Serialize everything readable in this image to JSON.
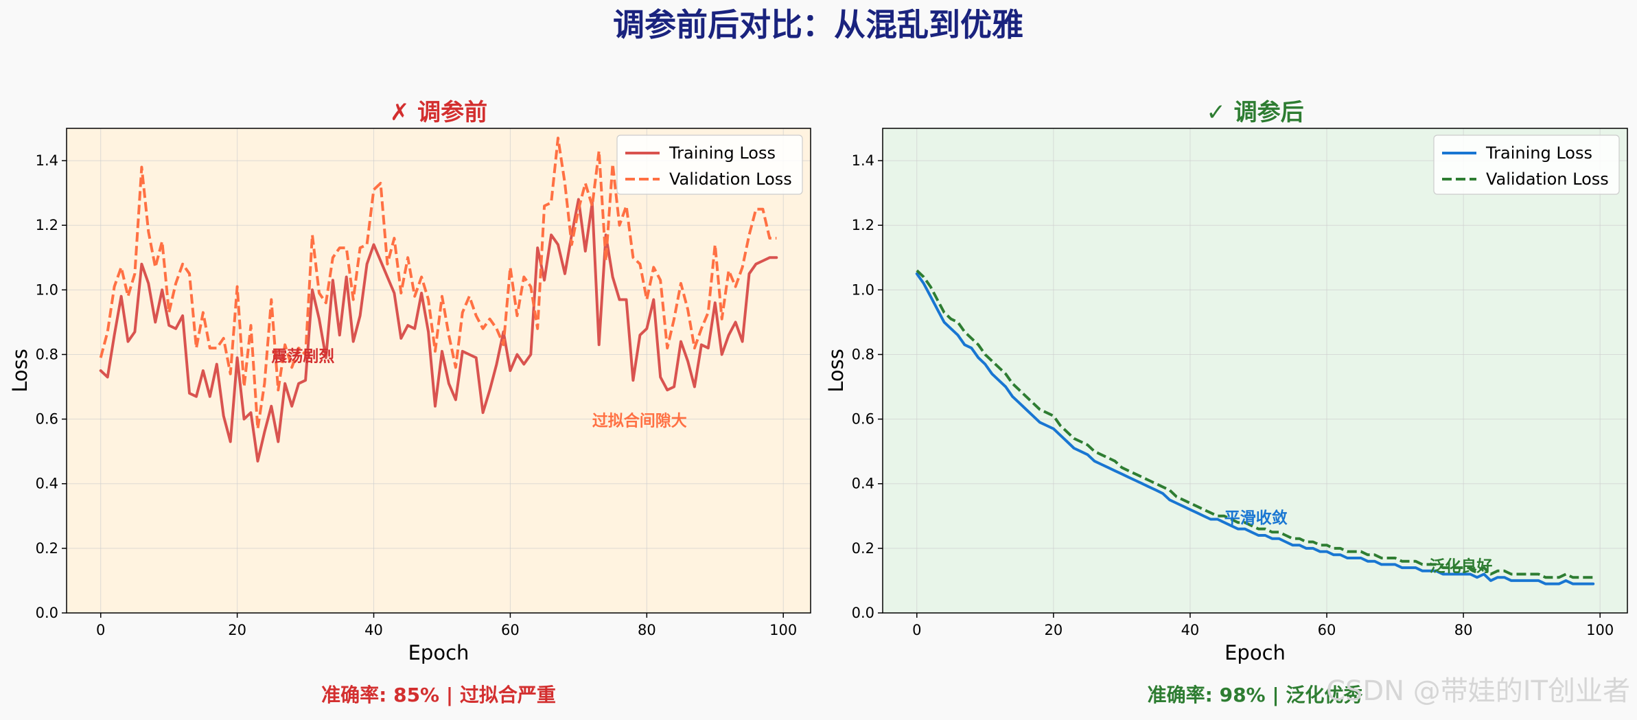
{
  "title": "调参前后对比：从混乱到优雅",
  "watermark": "CSDN @带娃的IT创业者",
  "colors": {
    "title": "#1a237e",
    "left_title": "#d32f2f",
    "right_title": "#2e7d32",
    "left_bg": "#fff3e0",
    "right_bg": "#e8f5e9",
    "left_train": "#d9534f",
    "left_val": "#ff7043",
    "right_train": "#1976d2",
    "right_val": "#2e7d32"
  },
  "chart_data": [
    {
      "type": "line",
      "title": "✗ 调参前",
      "xlabel": "Epoch",
      "ylabel": "Loss",
      "xlim": [
        -5,
        104
      ],
      "ylim": [
        0,
        1.5
      ],
      "xticks": [
        0,
        20,
        40,
        60,
        80,
        100
      ],
      "yticks": [
        0.0,
        0.2,
        0.4,
        0.6,
        0.8,
        1.0,
        1.2,
        1.4
      ],
      "grid": true,
      "legend": "top-right",
      "footer": "准确率: 85% | 过拟合严重",
      "annotations": [
        {
          "text": "震荡剧烈",
          "x": 25,
          "y": 0.8
        },
        {
          "text": "过拟合间隙大",
          "x": 72,
          "y": 0.6
        }
      ],
      "series": [
        {
          "name": "Training Loss",
          "style": "solid",
          "values": [
            0.75,
            0.73,
            0.86,
            0.98,
            0.84,
            0.87,
            1.08,
            1.02,
            0.9,
            1.0,
            0.89,
            0.88,
            0.92,
            0.68,
            0.67,
            0.75,
            0.67,
            0.77,
            0.61,
            0.53,
            0.79,
            0.6,
            0.62,
            0.47,
            0.56,
            0.64,
            0.53,
            0.71,
            0.64,
            0.71,
            0.72,
            1.0,
            0.91,
            0.79,
            1.03,
            0.86,
            1.04,
            0.84,
            0.92,
            1.08,
            1.14,
            1.09,
            1.04,
            0.99,
            0.85,
            0.89,
            0.88,
            0.99,
            0.87,
            0.64,
            0.81,
            0.71,
            0.66,
            0.81,
            0.8,
            0.79,
            0.62,
            0.69,
            0.77,
            0.87,
            0.75,
            0.8,
            0.77,
            0.8,
            1.13,
            1.03,
            1.17,
            1.14,
            1.05,
            1.17,
            1.28,
            1.12,
            1.27,
            0.83,
            1.17,
            1.04,
            0.97,
            0.97,
            0.72,
            0.86,
            0.88,
            0.97,
            0.73,
            0.69,
            0.7,
            0.84,
            0.78,
            0.7,
            0.83,
            0.82,
            0.96,
            0.8,
            0.86,
            0.9,
            0.84,
            1.05,
            1.08,
            1.09,
            1.1,
            1.1
          ]
        },
        {
          "name": "Validation Loss",
          "style": "dashed",
          "values": [
            0.79,
            0.87,
            1.01,
            1.07,
            0.98,
            1.05,
            1.38,
            1.18,
            1.07,
            1.15,
            0.93,
            1.02,
            1.08,
            1.05,
            0.82,
            0.93,
            0.82,
            0.82,
            0.85,
            0.74,
            1.01,
            0.7,
            0.89,
            0.57,
            0.71,
            0.97,
            0.69,
            0.83,
            0.76,
            0.82,
            0.8,
            1.17,
            0.99,
            0.96,
            1.1,
            1.13,
            1.13,
            0.97,
            1.13,
            1.14,
            1.31,
            1.33,
            1.08,
            1.16,
            0.99,
            1.1,
            0.98,
            1.04,
            0.97,
            0.81,
            0.98,
            0.86,
            0.76,
            0.93,
            0.98,
            0.92,
            0.88,
            0.91,
            0.88,
            0.83,
            1.07,
            0.92,
            1.04,
            1.01,
            0.88,
            1.26,
            1.27,
            1.47,
            1.33,
            1.14,
            1.25,
            1.33,
            1.26,
            1.43,
            1.09,
            1.39,
            1.2,
            1.26,
            1.1,
            1.08,
            0.97,
            1.07,
            1.03,
            0.82,
            0.91,
            1.02,
            0.94,
            0.82,
            0.88,
            0.93,
            1.14,
            0.91,
            1.06,
            1.01,
            1.07,
            1.17,
            1.25,
            1.25,
            1.16,
            1.16
          ]
        }
      ]
    },
    {
      "type": "line",
      "title": "✓ 调参后",
      "xlabel": "Epoch",
      "ylabel": "Loss",
      "xlim": [
        -5,
        104
      ],
      "ylim": [
        0,
        1.5
      ],
      "xticks": [
        0,
        20,
        40,
        60,
        80,
        100
      ],
      "yticks": [
        0.0,
        0.2,
        0.4,
        0.6,
        0.8,
        1.0,
        1.2,
        1.4
      ],
      "grid": true,
      "legend": "top-right",
      "footer": "准确率: 98% | 泛化优秀",
      "annotations": [
        {
          "text": "平滑收敛",
          "x": 45,
          "y": 0.3
        },
        {
          "text": "泛化良好",
          "x": 75,
          "y": 0.15
        }
      ],
      "series": [
        {
          "name": "Training Loss",
          "style": "solid",
          "values": [
            1.05,
            1.02,
            0.98,
            0.94,
            0.9,
            0.88,
            0.86,
            0.83,
            0.82,
            0.79,
            0.77,
            0.74,
            0.72,
            0.7,
            0.67,
            0.65,
            0.63,
            0.61,
            0.59,
            0.58,
            0.57,
            0.55,
            0.53,
            0.51,
            0.5,
            0.49,
            0.47,
            0.46,
            0.45,
            0.44,
            0.43,
            0.42,
            0.41,
            0.4,
            0.39,
            0.38,
            0.37,
            0.35,
            0.34,
            0.33,
            0.32,
            0.31,
            0.3,
            0.29,
            0.29,
            0.28,
            0.27,
            0.26,
            0.26,
            0.25,
            0.24,
            0.24,
            0.23,
            0.23,
            0.22,
            0.21,
            0.21,
            0.2,
            0.2,
            0.19,
            0.19,
            0.18,
            0.18,
            0.17,
            0.17,
            0.17,
            0.16,
            0.16,
            0.15,
            0.15,
            0.15,
            0.14,
            0.14,
            0.14,
            0.13,
            0.13,
            0.13,
            0.12,
            0.12,
            0.12,
            0.12,
            0.12,
            0.11,
            0.12,
            0.1,
            0.11,
            0.11,
            0.1,
            0.1,
            0.1,
            0.1,
            0.1,
            0.09,
            0.09,
            0.09,
            0.1,
            0.09,
            0.09,
            0.09,
            0.09
          ]
        },
        {
          "name": "Validation Loss",
          "style": "dashed",
          "values": [
            1.06,
            1.04,
            1.01,
            0.97,
            0.93,
            0.91,
            0.9,
            0.87,
            0.85,
            0.83,
            0.8,
            0.78,
            0.76,
            0.74,
            0.71,
            0.69,
            0.67,
            0.65,
            0.63,
            0.62,
            0.61,
            0.58,
            0.56,
            0.54,
            0.53,
            0.52,
            0.5,
            0.49,
            0.48,
            0.47,
            0.45,
            0.44,
            0.43,
            0.42,
            0.41,
            0.4,
            0.39,
            0.38,
            0.36,
            0.35,
            0.34,
            0.33,
            0.32,
            0.31,
            0.3,
            0.3,
            0.29,
            0.28,
            0.28,
            0.27,
            0.26,
            0.26,
            0.25,
            0.25,
            0.24,
            0.23,
            0.23,
            0.22,
            0.22,
            0.21,
            0.21,
            0.2,
            0.2,
            0.19,
            0.19,
            0.19,
            0.18,
            0.18,
            0.17,
            0.17,
            0.17,
            0.16,
            0.16,
            0.16,
            0.15,
            0.15,
            0.15,
            0.14,
            0.14,
            0.14,
            0.14,
            0.14,
            0.13,
            0.14,
            0.12,
            0.13,
            0.13,
            0.12,
            0.12,
            0.12,
            0.12,
            0.12,
            0.11,
            0.11,
            0.11,
            0.12,
            0.11,
            0.11,
            0.11,
            0.11
          ]
        }
      ]
    }
  ]
}
